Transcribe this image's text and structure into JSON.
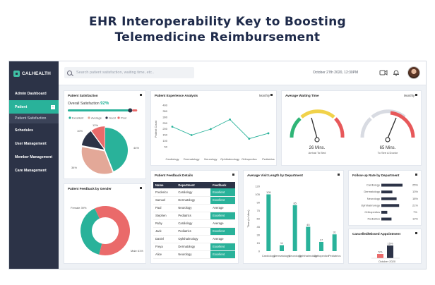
{
  "headline": {
    "line1": "EHR Interoperability Key to Boosting",
    "line2": "Telemedicine Reimbursement"
  },
  "brand": {
    "name": "CALHEALTH",
    "accent": "#29b29a",
    "sidebar_bg": "#2c3347"
  },
  "sidebar": {
    "items": [
      {
        "label": "Admin Dashboard"
      },
      {
        "label": "Patient",
        "active": true,
        "toggle": "−"
      },
      {
        "label": "Patient Satisfaction",
        "sub": true
      },
      {
        "label": "Schedules"
      },
      {
        "label": "User Management"
      },
      {
        "label": "Member Management"
      },
      {
        "label": "Care Management"
      }
    ]
  },
  "topbar": {
    "search_placeholder": "Search patient satisfaction, waiting time, etc..",
    "datetime": "October 27th 2020, 12:30PM",
    "icons": [
      "video-call-icon",
      "bell-icon"
    ]
  },
  "cards": {
    "satisfaction": {
      "title": "Patient Satisfaction",
      "overall_label": "Overall Satisfaction",
      "overall_value": "92%",
      "overall_fraction": 0.92,
      "legend": [
        "Excellent",
        "Average",
        "Good",
        "Poor"
      ],
      "slice_labels": {
        "poor": "10%",
        "good": "12%",
        "average": "34%",
        "excellent": "44%"
      }
    },
    "experience": {
      "title": "Patient Experience Analysis",
      "period": "Monthly",
      "ylabel": "Patient Count",
      "yticks": [
        "400",
        "350",
        "300",
        "250",
        "200",
        "150",
        "100",
        "50"
      ]
    },
    "waiting": {
      "title": "Average Waiting Time",
      "period": "Monthly",
      "gauge1": {
        "value": "26 Mins.",
        "caption": "Arrival To Bed"
      },
      "gauge2": {
        "value": "65 Mins.",
        "caption": "To See A Doctor"
      }
    },
    "gender": {
      "title": "Patient Feedback by Gender",
      "female_label": "Female 39%",
      "male_label": "Male 61%"
    },
    "feedback": {
      "title": "Patient Feedback Details",
      "columns": [
        "Name",
        "Department",
        "Feedback"
      ],
      "rows": [
        [
          "Frederico",
          "Cardiology",
          "Excellent"
        ],
        [
          "Samuel",
          "Dermatology",
          "Excellent"
        ],
        [
          "Paul",
          "Neurology",
          "Average"
        ],
        [
          "Stephen",
          "Pediatrics",
          "Excellent"
        ],
        [
          "Ruby",
          "Cardiology",
          "Average"
        ],
        [
          "Jack",
          "Pediatrics",
          "Excellent"
        ],
        [
          "Daniel",
          "Ophthalmology",
          "Average"
        ],
        [
          "Freya",
          "Dermatology",
          "Excellent"
        ],
        [
          "Alice",
          "Neurology",
          "Excellent"
        ]
      ]
    },
    "visit": {
      "title": "Average Visit Length by Department",
      "ylabel": "Time (in Mins)",
      "yticks": [
        "120",
        "105",
        "90",
        "75",
        "60",
        "45",
        "30",
        "15",
        "0"
      ]
    },
    "followup": {
      "title": "Follow-up Rate by Department"
    },
    "cancelled": {
      "title": "Cancelled/Missed Appointment"
    }
  },
  "chart_data": [
    {
      "type": "pie",
      "categories": [
        "Excellent",
        "Average",
        "Good",
        "Poor"
      ],
      "values": [
        44,
        34,
        12,
        10
      ],
      "colors": [
        "#29b29a",
        "#e3a898",
        "#2c3347",
        "#ea6a6a"
      ]
    },
    {
      "type": "line",
      "x": [
        "Cardiology",
        "Dermatology",
        "Neurology",
        "Ophthalmology",
        "Orthopedics",
        "Pediatrics"
      ],
      "series": [
        {
          "values": [
            220,
            150,
            200,
            280,
            120,
            165
          ]
        }
      ],
      "ylim": [
        0,
        400
      ],
      "ylabel": "Patient Count"
    },
    {
      "type": "bar",
      "categories": [
        "Cardiology",
        "Dermatology",
        "Neurology",
        "Ophthalmology",
        "Orthopedics",
        "Pediatrics"
      ],
      "values": [
        105,
        11,
        85,
        45,
        17,
        31
      ],
      "labels": [
        "105",
        "11",
        "85",
        "45",
        "17",
        "31"
      ],
      "ylim": [
        0,
        120
      ],
      "ylabel": "Time (in Mins)"
    },
    {
      "type": "bar",
      "orientation": "horizontal",
      "categories": [
        "Cardiology",
        "Dermatology",
        "Neurology",
        "Ophthalmology",
        "Orthopedics",
        "Pediatrics"
      ],
      "values": [
        25,
        13,
        18,
        21,
        7,
        12
      ],
      "labels": [
        "25%",
        "13%",
        "18%",
        "21%",
        "7%",
        "12%"
      ],
      "xlim": [
        0,
        30
      ]
    },
    {
      "type": "bar",
      "categories": [
        "October 2020"
      ],
      "series": [
        {
          "values": [
            5
          ]
        },
        {
          "values": [
            15
          ]
        }
      ],
      "labels": [
        "5%",
        "15%"
      ],
      "ylim": [
        0,
        20
      ]
    }
  ]
}
